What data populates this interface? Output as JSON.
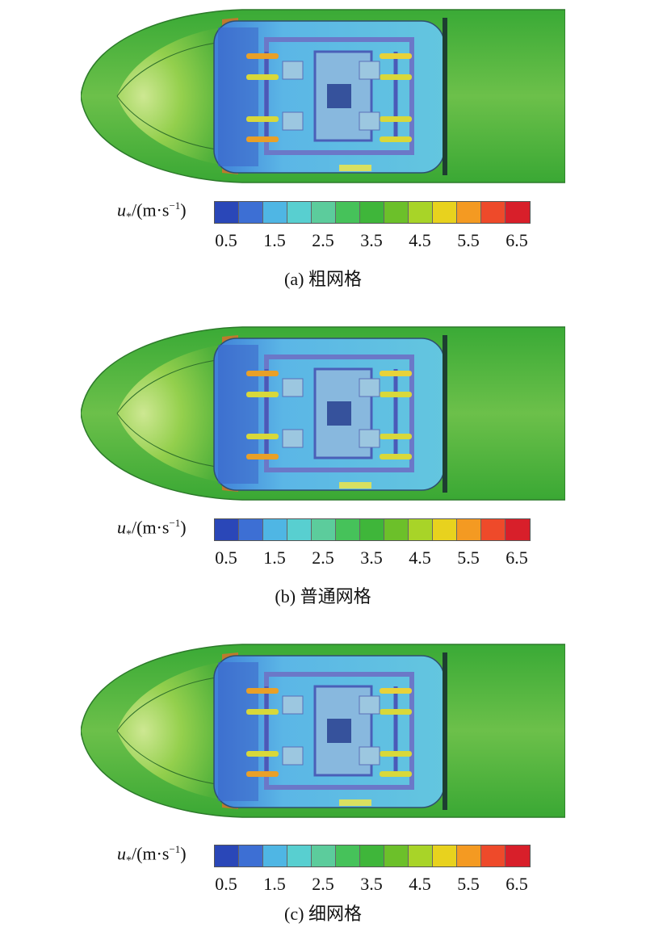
{
  "legend": {
    "symbol": "u",
    "subscript": "*",
    "unit_prefix": "/(m·s",
    "unit_exp": "−1",
    "unit_suffix": ")",
    "ticks": [
      "0.5",
      "1.5",
      "2.5",
      "3.5",
      "4.5",
      "5.5",
      "6.5"
    ],
    "colors": [
      "#2a47b8",
      "#3d6fd4",
      "#4fb6e4",
      "#58cfd0",
      "#5ccc9c",
      "#46c25a",
      "#3fb63a",
      "#6cc02a",
      "#a8d428",
      "#e8d21e",
      "#f49a22",
      "#ee4a2a",
      "#d81f2a"
    ]
  },
  "panels": [
    {
      "caption": "(a) 粗网格"
    },
    {
      "caption": "(b) 普通网格"
    },
    {
      "caption": "(c) 细网格"
    }
  ]
}
